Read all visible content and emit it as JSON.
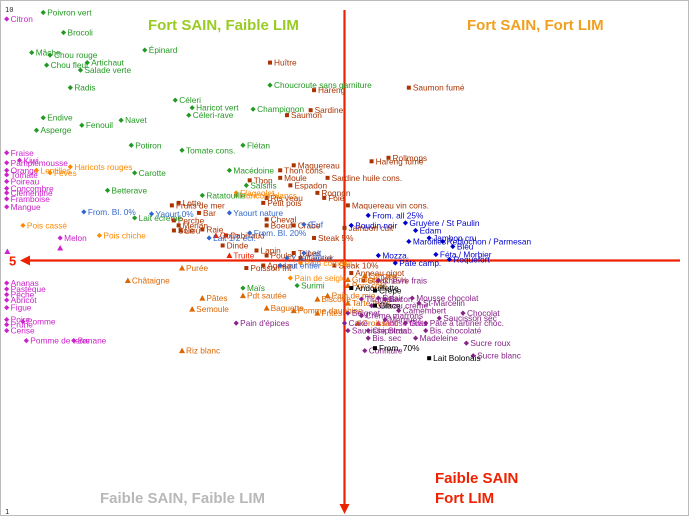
{
  "chart_data": {
    "type": "scatter",
    "title": "",
    "xlabel": "",
    "ylabel": "",
    "xlim": [
      1,
      11
    ],
    "ylim": [
      1,
      11
    ],
    "axis_value": 5,
    "center": [
      6,
      6
    ],
    "ticks": {
      "y_top": "10",
      "y_bottom": "1",
      "x_left": "5"
    },
    "grid": false,
    "quadrant_titles": [
      {
        "text": "Fort SAIN, Faible LIM",
        "color": "#99cc22"
      },
      {
        "text": "Fort SAIN, Fort LIM",
        "color": "#f0a020"
      },
      {
        "text": "Faible SAIN, Faible LIM",
        "color": "#b8b8b8"
      },
      {
        "text": "Faible SAIN",
        "color": "#ee2200"
      },
      {
        "text": "Fort LIM",
        "color": "#ee2200"
      }
    ],
    "series": [
      {
        "color": "#cc22cc",
        "marker": "diamond",
        "label_side": "right",
        "points": [
          [
            "Citron",
            1.01,
            10.82
          ],
          [
            "Fraise",
            1.01,
            8.15
          ],
          [
            "Kiwi",
            1.2,
            8.0
          ],
          [
            "Pamplemousse",
            1.01,
            7.95
          ],
          [
            "Orange",
            1.01,
            7.8
          ],
          [
            "Tomate",
            1.01,
            7.71
          ],
          [
            "Poireau",
            1.01,
            7.58
          ],
          [
            "Concombre",
            1.01,
            7.44
          ],
          [
            "Clémentine",
            1.01,
            7.35
          ],
          [
            "Framboise",
            1.01,
            7.23
          ],
          [
            "Mangue",
            1.01,
            7.07
          ],
          [
            "Ananas",
            1.01,
            5.55
          ],
          [
            "Pastèque",
            1.01,
            5.43
          ],
          [
            "Pêche",
            1.01,
            5.32
          ],
          [
            "Abricot",
            1.01,
            5.21
          ],
          [
            "Figue",
            1.01,
            5.06
          ],
          [
            "Poire",
            1.01,
            4.82
          ],
          [
            "Prune",
            1.01,
            4.72
          ],
          [
            "Cerise",
            1.01,
            4.6
          ],
          [
            "Pomme",
            1.25,
            4.78
          ],
          [
            "Melon",
            1.8,
            6.45
          ],
          [
            "Pomme de terre",
            1.3,
            4.4
          ],
          [
            "Banane",
            2.0,
            4.4
          ]
        ]
      },
      {
        "color": "#cc22cc",
        "marker": "triangle",
        "label_side": "none",
        "points": [
          [
            "",
            1.02,
            6.18
          ],
          [
            "",
            1.8,
            6.25
          ]
        ]
      },
      {
        "color": "#cc22cc",
        "marker": "triangle",
        "label_side": "right",
        "points": [
          [
            "Mouse fruits",
            6.5,
            4.75
          ]
        ]
      },
      {
        "color": "#229922",
        "marker": "diamond",
        "label_side": "right",
        "points": [
          [
            "Poivron vert",
            1.55,
            10.95
          ],
          [
            "Brocoli",
            1.85,
            10.55
          ],
          [
            "Mâche",
            1.38,
            10.15
          ],
          [
            "Chou rouge",
            1.65,
            10.1
          ],
          [
            "Artichaut",
            2.2,
            9.95
          ],
          [
            "Chou fleur",
            1.6,
            9.9
          ],
          [
            "Salade verte",
            2.1,
            9.8
          ],
          [
            "Radis",
            1.95,
            9.45
          ],
          [
            "Épinard",
            3.05,
            10.2
          ],
          [
            "Endive",
            1.55,
            8.85
          ],
          [
            "Navet",
            2.7,
            8.8
          ],
          [
            "Fenouil",
            2.12,
            8.7
          ],
          [
            "Asperge",
            1.45,
            8.6
          ],
          [
            "Potiron",
            2.85,
            8.3
          ],
          [
            "Carotte",
            2.9,
            7.75
          ],
          [
            "Betterave",
            2.5,
            7.4
          ],
          [
            "Céleri",
            3.5,
            9.2
          ],
          [
            "Haricot vert",
            3.75,
            9.05
          ],
          [
            "Céleri-rave",
            3.7,
            8.9
          ],
          [
            "Tomate cons.",
            3.6,
            8.2
          ],
          [
            "Champignon",
            4.65,
            9.02
          ],
          [
            "Choucroute sans garniture",
            4.9,
            9.5
          ],
          [
            "Flétan",
            4.5,
            8.3
          ],
          [
            "Macédoine",
            4.3,
            7.8
          ],
          [
            "Salsifis",
            4.55,
            7.5
          ]
        ]
      },
      {
        "color": "#aa3300",
        "marker": "square",
        "label_side": "right",
        "points": [
          [
            "Huître",
            4.9,
            9.95
          ],
          [
            "Hareng",
            5.55,
            9.4
          ],
          [
            "Saumon fumé",
            6.95,
            9.45
          ],
          [
            "Sardine",
            5.5,
            9.0
          ],
          [
            "Saumon",
            5.15,
            8.9
          ],
          [
            "Rollmops",
            6.65,
            8.05
          ],
          [
            "Maquereau",
            5.25,
            7.9
          ],
          [
            "Hareng fumé",
            6.4,
            7.98
          ],
          [
            "Thon cons.",
            5.05,
            7.8
          ],
          [
            "Moule",
            5.05,
            7.65
          ],
          [
            "Sardine huile cons.",
            5.75,
            7.65
          ],
          [
            "Thon",
            4.6,
            7.6
          ],
          [
            "Espadon",
            5.2,
            7.5
          ],
          [
            "Rognon",
            5.6,
            7.35
          ],
          [
            "Foie",
            5.7,
            7.25
          ],
          [
            "Maquereau vin cons.",
            6.05,
            7.1
          ],
          [
            "Ris veau",
            4.85,
            7.25
          ],
          [
            "Petit pois",
            4.8,
            7.15
          ],
          [
            "Fruits de mer",
            3.45,
            7.1
          ],
          [
            "Cheval",
            4.85,
            6.82
          ],
          [
            "Boeuf",
            4.85,
            6.7
          ],
          [
            "Crabe",
            5.25,
            6.7
          ],
          [
            "Jambon cuit",
            6.0,
            6.65
          ],
          [
            "Lapin",
            4.7,
            6.2
          ],
          [
            "Poulet",
            4.85,
            6.1
          ],
          [
            "Tripes",
            5.25,
            6.15
          ],
          [
            "Canard",
            5.35,
            6.05
          ],
          [
            "Agneau",
            4.8,
            5.9
          ],
          [
            "Steak 5%",
            5.55,
            6.45
          ],
          [
            "Dinde",
            4.2,
            6.3
          ],
          [
            "Cabillaud",
            4.25,
            6.5
          ],
          [
            "Perche",
            3.48,
            6.8
          ],
          [
            "Merlan",
            3.55,
            6.7
          ],
          [
            "Sole",
            3.48,
            6.6
          ],
          [
            "Lieu",
            3.58,
            6.6
          ],
          [
            "Raie",
            3.9,
            6.62
          ],
          [
            "Bar",
            3.85,
            6.95
          ],
          [
            "Lotte",
            3.55,
            7.15
          ],
          [
            "Steak 10%",
            5.85,
            5.9
          ],
          [
            "Steak 15%",
            6.28,
            5.6
          ],
          [
            "Anneau gigot",
            6.1,
            5.75
          ],
          [
            "Poisson frit",
            4.55,
            5.85
          ]
        ]
      },
      {
        "color": "#ee2200",
        "marker": "triangle",
        "label_side": "right",
        "points": [
          [
            "Truite",
            4.3,
            6.1
          ],
          [
            "Colin",
            4.1,
            6.5
          ]
        ]
      },
      {
        "color": "#ff8800",
        "marker": "diamond",
        "label_side": "right",
        "points": [
          [
            "Lentilles",
            1.45,
            7.8
          ],
          [
            "Haricots rouges",
            1.95,
            7.87
          ],
          [
            "Fèves",
            1.65,
            7.75
          ],
          [
            "Pois cassé",
            1.25,
            6.7
          ],
          [
            "Pois chiche",
            2.38,
            6.5
          ],
          [
            "Haricots blancs",
            4.4,
            7.3
          ],
          [
            "Flageolet",
            4.4,
            7.35
          ],
          [
            "Pain complet",
            5.35,
            5.95
          ],
          [
            "Pain de seigle",
            5.2,
            5.65
          ]
        ]
      },
      {
        "color": "#dd6600",
        "marker": "triangle",
        "label_side": "right",
        "points": [
          [
            "Châtaigne",
            2.8,
            5.6
          ],
          [
            "Purée",
            3.6,
            5.85
          ],
          [
            "Pâtes",
            3.9,
            5.25
          ],
          [
            "Semoule",
            3.75,
            5.03
          ],
          [
            "Pain de mie",
            5.75,
            5.3
          ],
          [
            "Pdt sautée",
            4.5,
            5.3
          ],
          [
            "Biscotte",
            5.6,
            5.23
          ],
          [
            "Baguette",
            4.85,
            5.05
          ],
          [
            "Pomme dauphine",
            5.25,
            5.0
          ],
          [
            "Frites",
            5.6,
            4.95
          ],
          [
            "Riz blanc",
            3.6,
            4.2
          ],
          [
            "Tarte fruits",
            6.05,
            5.15
          ],
          [
            "Croissant",
            6.2,
            4.75
          ],
          [
            "Gnocchi",
            6.05,
            5.62
          ],
          [
            "Porc côte",
            6.05,
            5.5
          ],
          [
            "Langue",
            6.3,
            5.7
          ]
        ]
      },
      {
        "color": "#229922",
        "marker": "diamond",
        "label_side": "right",
        "points": [
          [
            "Ratatouille",
            3.9,
            7.3
          ],
          [
            "Lait écrémé",
            2.9,
            6.85
          ],
          [
            "Maïs",
            4.5,
            5.45
          ],
          [
            "Surimi",
            5.3,
            5.5
          ]
        ]
      },
      {
        "color": "#3366cc",
        "marker": "diamond",
        "label_side": "right",
        "points": [
          [
            "From. Bl. 0%",
            2.15,
            6.97
          ],
          [
            "Yaourt 0%",
            3.15,
            6.93
          ],
          [
            "Yaourt nature",
            4.3,
            6.95
          ],
          [
            "Lait 1/2 écr.",
            4.0,
            6.45
          ],
          [
            "From. Bl. 20%",
            4.6,
            6.55
          ],
          [
            "Y. lait entier",
            5.15,
            6.05
          ],
          [
            "Lait entier",
            5.05,
            5.9
          ],
          [
            "Œuf",
            5.4,
            6.72
          ],
          [
            "Lait",
            5.4,
            6.15
          ]
        ]
      },
      {
        "color": "#0000cc",
        "marker": "diamond",
        "label_side": "right",
        "points": [
          [
            "From. all 25%",
            6.35,
            6.9
          ],
          [
            "Gruyère / St Paulin",
            6.9,
            6.75
          ],
          [
            "Boudin noir",
            6.1,
            6.7
          ],
          [
            "Edam",
            7.05,
            6.6
          ],
          [
            "Maroilles",
            6.95,
            6.38
          ],
          [
            "Reblochon / Parmesan",
            7.45,
            6.38
          ],
          [
            "Jambon cru",
            7.25,
            6.45
          ],
          [
            "Bleu",
            7.6,
            6.28
          ],
          [
            "Mozza.",
            6.5,
            6.1
          ],
          [
            "Féta / Morbier",
            7.35,
            6.12
          ],
          [
            "Roquefort",
            7.55,
            6.02
          ],
          [
            "Pâte camp.",
            6.75,
            5.95
          ]
        ]
      },
      {
        "color": "#882288",
        "marker": "diamond",
        "label_side": "right",
        "points": [
          [
            "Chèvre frais",
            6.5,
            5.6
          ],
          [
            "Éclair",
            6.5,
            5.25
          ],
          [
            "Mousse chocolat",
            7.0,
            5.25
          ],
          [
            "Tiramisu",
            6.25,
            5.23
          ],
          [
            "Bacon",
            6.6,
            5.23
          ],
          [
            "St-Marcelin",
            7.1,
            5.15
          ],
          [
            "Gâteau crème",
            6.4,
            5.1
          ],
          [
            "Camembert",
            6.8,
            5.0
          ],
          [
            "Beignet",
            6.05,
            4.95
          ],
          [
            "Crème marrons",
            6.25,
            4.9
          ],
          [
            "Chocolat",
            7.75,
            4.95
          ],
          [
            "Saucisson sec",
            7.4,
            4.85
          ],
          [
            "Merguez",
            6.6,
            4.82
          ],
          [
            "Pâte à tartiner choc.",
            7.2,
            4.75
          ],
          [
            "Bis. chocolaté",
            7.2,
            4.6
          ],
          [
            "Pain d'épices",
            4.4,
            4.75
          ],
          [
            "Bis. sec",
            6.35,
            4.45
          ],
          [
            "Madeleine",
            7.05,
            4.45
          ],
          [
            "Sucre roux",
            7.8,
            4.35
          ],
          [
            "Sucre blanc",
            7.9,
            4.1
          ],
          [
            "Confiture",
            6.3,
            4.2
          ],
          [
            "Chipolata",
            6.35,
            4.6
          ],
          [
            "Cake",
            6.0,
            4.75
          ],
          [
            "Saucisse Strasb.",
            6.05,
            4.6
          ],
          [
            "Gras",
            6.9,
            4.75
          ]
        ]
      },
      {
        "color": "#000000",
        "marker": "square",
        "label_side": "right",
        "points": [
          [
            "Andouillette",
            6.1,
            5.45
          ],
          [
            "Crêpe",
            6.45,
            5.4
          ],
          [
            "Glace",
            6.45,
            5.1
          ],
          [
            "From. 70%",
            6.45,
            4.25
          ],
          [
            "Lait Bolonais",
            7.25,
            4.05
          ]
        ]
      }
    ]
  }
}
